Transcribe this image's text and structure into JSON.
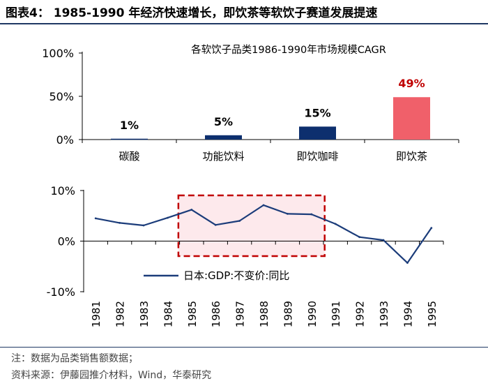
{
  "figure_title": "图表4： 1985-1990 年经济快速增长，即饮茶等软饮子赛道发展提速",
  "notes": [
    "注：数据为品类销售额数据；",
    "资料来源：伊藤园推介材料，Wind，华泰研究"
  ],
  "colors": {
    "navy": "#0d2f6e",
    "red": "#f0606a",
    "red_label": "#c00000",
    "line": "#1b3c7a",
    "box_fill": "#fde9ec",
    "box_stroke": "#c00000",
    "rule": "#1f3864"
  },
  "chart_data": [
    {
      "type": "bar",
      "title": "各软饮子品类1986-1990年市场规模CAGR",
      "categories": [
        "碳酸",
        "功能饮料",
        "即饮咖啡",
        "即饮茶"
      ],
      "values": [
        1,
        5,
        15,
        49
      ],
      "value_labels": [
        "1%",
        "5%",
        "15%",
        "49%"
      ],
      "ylim": [
        0,
        100
      ],
      "yticks": [
        0,
        50,
        100
      ],
      "ytick_labels": [
        "0%",
        "50%",
        "100%"
      ],
      "bar_colors": [
        "#0d2f6e",
        "#0d2f6e",
        "#0d2f6e",
        "#f0606a"
      ],
      "label_colors": [
        "#000000",
        "#000000",
        "#000000",
        "#c00000"
      ]
    },
    {
      "type": "line",
      "x": [
        "1981",
        "1982",
        "1983",
        "1984",
        "1985",
        "1986",
        "1987",
        "1988",
        "1989",
        "1990",
        "1991",
        "1992",
        "1993",
        "1994",
        "1995"
      ],
      "series": [
        {
          "name": "日本:GDP:不变价:同比",
          "values": [
            4.5,
            3.6,
            3.1,
            4.6,
            6.2,
            3.2,
            4.0,
            7.1,
            5.4,
            5.3,
            3.4,
            0.8,
            0.2,
            -4.3,
            2.6
          ]
        }
      ],
      "ylim": [
        -10,
        10
      ],
      "yticks": [
        -10,
        0,
        10
      ],
      "ytick_labels": [
        "-10%",
        "0%",
        "10%"
      ],
      "highlight_range": [
        "1985",
        "1990"
      ],
      "legend_position": "bottom-left"
    }
  ]
}
